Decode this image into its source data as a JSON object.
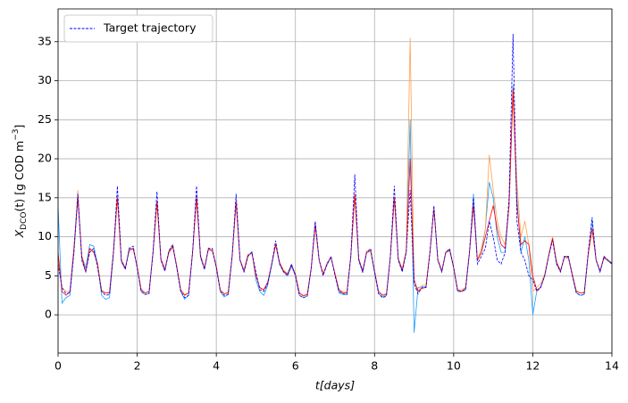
{
  "chart_data": {
    "type": "line",
    "ylabel": {
      "symbol": "X",
      "subscript": "DCO",
      "text": "(t) [g COD m",
      "superscript": "−3",
      "close": "]"
    },
    "xlabel": "t[days]",
    "xlim": [
      0,
      14
    ],
    "ylim": [
      -4.9,
      39.2
    ],
    "xticks": [
      0,
      2,
      4,
      6,
      8,
      10,
      12,
      14
    ],
    "yticks": [
      0,
      5,
      10,
      15,
      20,
      25,
      30,
      35
    ],
    "grid": true,
    "legend": "upper left",
    "x": [
      0,
      0.1,
      0.2,
      0.3,
      0.4,
      0.5,
      0.6,
      0.7,
      0.8,
      0.9,
      1,
      1.1,
      1.2,
      1.3,
      1.4,
      1.5,
      1.6,
      1.7,
      1.8,
      1.9,
      2,
      2.1,
      2.2,
      2.3,
      2.4,
      2.5,
      2.6,
      2.7,
      2.8,
      2.9,
      3,
      3.1,
      3.2,
      3.3,
      3.4,
      3.5,
      3.6,
      3.7,
      3.8,
      3.9,
      4,
      4.1,
      4.2,
      4.3,
      4.4,
      4.5,
      4.6,
      4.7,
      4.8,
      4.9,
      5,
      5.1,
      5.2,
      5.3,
      5.4,
      5.5,
      5.6,
      5.7,
      5.8,
      5.9,
      6,
      6.1,
      6.2,
      6.3,
      6.4,
      6.5,
      6.6,
      6.7,
      6.8,
      6.9,
      7,
      7.1,
      7.2,
      7.3,
      7.4,
      7.5,
      7.6,
      7.7,
      7.8,
      7.9,
      8,
      8.1,
      8.2,
      8.3,
      8.4,
      8.5,
      8.6,
      8.7,
      8.8,
      8.9,
      9,
      9.1,
      9.2,
      9.3,
      9.4,
      9.5,
      9.6,
      9.7,
      9.8,
      9.9,
      10,
      10.1,
      10.2,
      10.3,
      10.4,
      10.5,
      10.6,
      10.7,
      10.8,
      10.9,
      11,
      11.1,
      11.2,
      11.3,
      11.4,
      11.5,
      11.6,
      11.7,
      11.8,
      11.9,
      12,
      12.1,
      12.2,
      12.3,
      12.4,
      12.5,
      12.6,
      12.7,
      12.8,
      12.9,
      13,
      13.1,
      13.2,
      13.3,
      13.4,
      13.5,
      13.6,
      13.7,
      13.8,
      13.9,
      14
    ],
    "series": [
      {
        "color": "#1e9bff",
        "values": [
          14,
          1.5,
          2.2,
          2.5,
          7.8,
          15,
          7.5,
          6,
          9,
          8.8,
          6.5,
          2.5,
          2,
          2.2,
          7.8,
          15.3,
          6.7,
          5.9,
          8.6,
          8.4,
          6.1,
          3,
          2.6,
          2.8,
          8,
          14.5,
          7,
          5.7,
          8,
          8.8,
          6.1,
          3,
          2,
          2.5,
          8,
          15.2,
          7.3,
          5.9,
          8.4,
          8.2,
          6.1,
          3,
          2.3,
          2.6,
          7.4,
          14.4,
          7,
          5.5,
          7.5,
          8.1,
          4.5,
          3,
          2.5,
          3.8,
          6.3,
          9,
          6.5,
          5.5,
          5,
          6.2,
          5,
          2.5,
          2.2,
          2.4,
          6,
          11.8,
          7,
          5.2,
          6.4,
          7.3,
          5.2,
          2.8,
          2.6,
          2.6,
          7.4,
          15.3,
          7,
          5.4,
          8,
          8.2,
          5.4,
          2.8,
          2.3,
          2.5,
          7.4,
          15,
          7,
          5.6,
          8,
          25,
          -2.3,
          3.5,
          3.6,
          3.6,
          8,
          13.8,
          7,
          5.5,
          8,
          8.2,
          6,
          3,
          3,
          3.2,
          8,
          15.5,
          7,
          8,
          11,
          17,
          15,
          10,
          8,
          8,
          14,
          29.5,
          15,
          8,
          10,
          7,
          0,
          3,
          3.6,
          5,
          7.6,
          9.9,
          6.6,
          5.5,
          7.5,
          7.3,
          5,
          2.8,
          2.5,
          2.6,
          7.6,
          12,
          7,
          5.5,
          7.3,
          6.9,
          6.5
        ]
      },
      {
        "color": "#ffa050",
        "values": [
          7,
          3.5,
          3,
          3,
          8,
          16,
          7,
          5.5,
          8.5,
          8.2,
          6.4,
          3.2,
          2.8,
          2.9,
          8.2,
          15.2,
          6.8,
          6,
          8.2,
          8.6,
          6,
          3.3,
          2.8,
          3,
          7.8,
          14.2,
          7,
          5.9,
          8.2,
          9,
          6.3,
          3.2,
          2.6,
          2.8,
          8,
          14.8,
          7.4,
          6,
          8.6,
          8.3,
          6.3,
          3,
          2.7,
          2.9,
          7.6,
          14.2,
          7.1,
          5.8,
          7.8,
          7.8,
          5.2,
          3.4,
          3.2,
          4,
          6.5,
          9.2,
          6.8,
          5.7,
          5.3,
          6.5,
          5.1,
          2.8,
          2.5,
          2.7,
          6.2,
          11.3,
          7.1,
          5.3,
          6.5,
          7.3,
          5.4,
          3.2,
          3,
          2.9,
          7.5,
          15.2,
          7.2,
          5.7,
          8.2,
          8.3,
          5.7,
          3,
          2.6,
          2.7,
          7.4,
          15.2,
          7.1,
          5.9,
          8.3,
          35.5,
          4,
          3,
          3.8,
          3.8,
          8.2,
          13.6,
          7.2,
          5.7,
          8.1,
          8.3,
          6.2,
          3.2,
          3.2,
          3.5,
          8.2,
          14.5,
          7,
          8.5,
          11,
          20.5,
          16,
          12,
          10,
          9,
          14,
          28,
          17,
          10,
          12,
          9,
          3,
          3.5,
          4,
          5.2,
          7.7,
          10,
          6.8,
          5.7,
          7.3,
          7.2,
          5,
          3.1,
          2.8,
          2.9,
          7.6,
          11.2,
          7.1,
          5.7,
          7.2,
          7,
          6.7
        ]
      },
      {
        "color": "#ff0000",
        "values": [
          8,
          3,
          2.5,
          3,
          8.5,
          15,
          7.5,
          5.5,
          8.5,
          8,
          6.5,
          3,
          2.8,
          2.8,
          8,
          15,
          7,
          6,
          8.3,
          8.5,
          6.2,
          3.2,
          2.8,
          3,
          8,
          14.5,
          7.2,
          5.8,
          8,
          8.7,
          6.2,
          3.2,
          2.5,
          2.8,
          8,
          15,
          7.6,
          6,
          8.4,
          8.2,
          6.2,
          3.2,
          2.7,
          2.8,
          7.5,
          14.5,
          7,
          5.6,
          7.6,
          8,
          5,
          3.5,
          3.2,
          4.2,
          6.5,
          9,
          6.6,
          5.6,
          5.2,
          6.4,
          5.2,
          2.8,
          2.4,
          2.6,
          6,
          11.5,
          7,
          5.2,
          6.6,
          7.4,
          5.2,
          3.2,
          2.8,
          2.8,
          7.5,
          15.5,
          7.2,
          5.6,
          8,
          8.2,
          5.6,
          3,
          2.5,
          2.6,
          7.5,
          15,
          7.2,
          5.8,
          8,
          20,
          4.5,
          3,
          3.4,
          3.5,
          8,
          13.5,
          7,
          5.6,
          8,
          8.3,
          6,
          3.2,
          3,
          3.4,
          8,
          14,
          7,
          8,
          10,
          12,
          14,
          11,
          9,
          8.5,
          14,
          29,
          14,
          9,
          9.5,
          9,
          5,
          3.2,
          3.5,
          5,
          7.5,
          9.8,
          6.7,
          5.6,
          7.5,
          7.4,
          5.2,
          3,
          2.8,
          2.8,
          7.8,
          11,
          7,
          5.6,
          7.4,
          7,
          6.6
        ]
      },
      {
        "name": "Target trajectory",
        "color": "#0000ff",
        "dashed": true,
        "values": [
          6.5,
          3.5,
          2.7,
          2.8,
          8,
          15.5,
          7,
          5.5,
          8,
          8.5,
          6,
          3,
          2.5,
          2.6,
          8,
          16.5,
          7,
          5.8,
          8.5,
          8.8,
          6,
          3,
          2.6,
          2.7,
          8,
          15.8,
          7,
          5.6,
          8.2,
          9,
          6,
          3,
          2.2,
          2.5,
          8,
          16.5,
          7.5,
          5.8,
          8.5,
          8.5,
          6,
          3,
          2.5,
          2.6,
          7.5,
          15.5,
          7,
          5.5,
          7.5,
          8,
          5.5,
          3.2,
          3,
          4,
          6.5,
          9.5,
          6.5,
          5.5,
          5,
          6.5,
          5,
          2.5,
          2.2,
          2.4,
          6,
          12,
          7,
          5,
          6.5,
          7.5,
          5,
          3,
          2.7,
          2.6,
          7.5,
          18,
          7,
          5.5,
          8,
          8.5,
          5.5,
          2.7,
          2.2,
          2.4,
          7.5,
          16.5,
          7,
          5.5,
          8,
          16,
          4,
          2.7,
          3.5,
          3.5,
          8,
          14,
          7,
          5.5,
          8,
          8.5,
          6,
          3,
          3,
          3.2,
          8,
          15,
          6.5,
          7.5,
          8.5,
          12,
          10,
          7,
          6.5,
          8,
          15,
          36,
          12,
          8,
          7,
          5,
          4.5,
          3,
          3.5,
          5,
          7.5,
          9.5,
          6.5,
          5.5,
          7.5,
          7.5,
          5,
          2.8,
          2.5,
          2.6,
          8,
          12.5,
          7,
          5.5,
          7.5,
          7,
          6.5
        ]
      }
    ]
  }
}
